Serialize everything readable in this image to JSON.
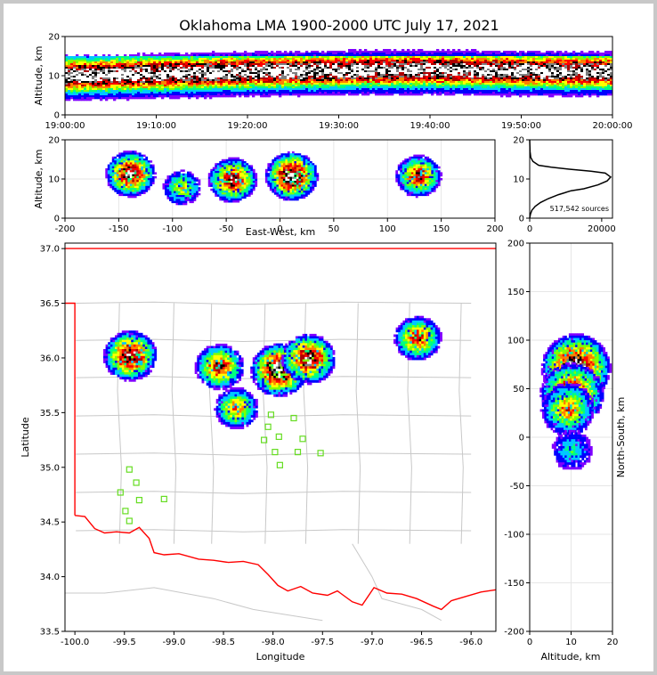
{
  "title": "Oklahoma LMA 1900-2000 UTC July 17, 2021",
  "colors": {
    "background": "#ffffff",
    "border": "#c8c8c8",
    "state_line": "#ff0000",
    "county_line": "#c8c8c8",
    "stations": "#66dd22",
    "density_scale": [
      "#8000ff",
      "#0000ff",
      "#00c8ff",
      "#00ff80",
      "#80ff00",
      "#ffff00",
      "#ff8000",
      "#ff0000",
      "#b00000",
      "#000000",
      "#808080",
      "#ffffff"
    ]
  },
  "chart_data": [
    {
      "id": "time_height",
      "type": "heatmap",
      "ylabel": "Altitude, km",
      "ylim": [
        0,
        20
      ],
      "yticks": [
        "0",
        "10",
        "20"
      ],
      "xlim": [
        "19:00:00",
        "20:00:00"
      ],
      "xticks": [
        "19:00:00",
        "19:10:00",
        "19:20:00",
        "19:30:00",
        "19:40:00",
        "19:50:00",
        "20:00:00"
      ],
      "core_altitude_km": [
        10,
        10.5,
        11,
        11.3,
        11.5,
        11.2,
        11
      ],
      "band_altitude_km": [
        3,
        15
      ]
    },
    {
      "id": "ew_height",
      "type": "heatmap",
      "xlabel": "East-West, km",
      "ylabel": "Altitude, km",
      "xlim": [
        -200,
        200
      ],
      "ylim": [
        0,
        20
      ],
      "xticks": [
        "-200",
        "-150",
        "-100",
        "-50",
        "0",
        "50",
        "100",
        "150",
        "200"
      ],
      "yticks": [
        "0",
        "10",
        "20"
      ],
      "cells": [
        {
          "x_km": -140,
          "alt_km": 11.5,
          "peak": 0.9
        },
        {
          "x_km": -45,
          "alt_km": 10,
          "peak": 0.85
        },
        {
          "x_km": 10,
          "alt_km": 11,
          "peak": 1.0
        },
        {
          "x_km": 128,
          "alt_km": 11,
          "peak": 0.75
        },
        {
          "x_km": -92,
          "alt_km": 8,
          "peak": 0.5
        }
      ]
    },
    {
      "id": "alt_histogram",
      "type": "line",
      "xlim": [
        0,
        23000
      ],
      "ylim": [
        0,
        20
      ],
      "xticks": [
        "0",
        "20000"
      ],
      "yticks": [
        "0",
        "10",
        "20"
      ],
      "annotation": "517,542 sources",
      "x": [
        0,
        200,
        600,
        1500,
        3000,
        5200,
        8000,
        11500,
        15000,
        19000,
        21500,
        22500,
        21000,
        17000,
        11000,
        6000,
        2500,
        900,
        300,
        100,
        0
      ],
      "y": [
        0,
        1,
        2,
        3,
        4,
        5,
        6,
        7,
        7.5,
        8.5,
        9.5,
        10.5,
        11.5,
        12,
        12.5,
        13,
        13.5,
        14.5,
        15.5,
        17,
        20
      ]
    },
    {
      "id": "plan_view",
      "type": "heatmap",
      "xlabel": "Longitude",
      "ylabel": "Latitude",
      "xlim": [
        -100.1,
        -95.75
      ],
      "ylim": [
        33.5,
        37.05
      ],
      "xticks": [
        "-100.0",
        "-99.5",
        "-99.0",
        "-98.5",
        "-98.0",
        "-97.5",
        "-97.0",
        "-96.5",
        "-96.0"
      ],
      "yticks": [
        "33.5",
        "34.0",
        "34.5",
        "35.0",
        "35.5",
        "36.0",
        "36.5",
        "37.0"
      ],
      "cells": [
        {
          "lon": -99.45,
          "lat": 36.03,
          "peak": 0.9
        },
        {
          "lon": -98.55,
          "lat": 35.93,
          "peak": 0.75
        },
        {
          "lon": -98.38,
          "lat": 35.55,
          "peak": 0.6
        },
        {
          "lon": -97.95,
          "lat": 35.9,
          "peak": 1.0
        },
        {
          "lon": -97.65,
          "lat": 36.0,
          "peak": 0.9
        },
        {
          "lon": -96.55,
          "lat": 36.19,
          "peak": 0.7
        }
      ],
      "stations": [
        {
          "lon": -98.02,
          "lat": 35.48
        },
        {
          "lon": -97.79,
          "lat": 35.45
        },
        {
          "lon": -98.05,
          "lat": 35.37
        },
        {
          "lon": -98.09,
          "lat": 35.25
        },
        {
          "lon": -97.94,
          "lat": 35.28
        },
        {
          "lon": -97.7,
          "lat": 35.26
        },
        {
          "lon": -97.98,
          "lat": 35.14
        },
        {
          "lon": -97.75,
          "lat": 35.14
        },
        {
          "lon": -97.52,
          "lat": 35.13
        },
        {
          "lon": -97.93,
          "lat": 35.02
        },
        {
          "lon": -99.45,
          "lat": 34.98
        },
        {
          "lon": -99.38,
          "lat": 34.86
        },
        {
          "lon": -99.54,
          "lat": 34.77
        },
        {
          "lon": -99.35,
          "lat": 34.7
        },
        {
          "lon": -99.1,
          "lat": 34.71
        },
        {
          "lon": -99.49,
          "lat": 34.6
        },
        {
          "lon": -99.45,
          "lat": 34.51
        }
      ]
    },
    {
      "id": "ns_height",
      "type": "heatmap",
      "xlabel": "Altitude, km",
      "ylabel": "North-South, km",
      "xlim": [
        0,
        20
      ],
      "ylim": [
        -200,
        200
      ],
      "xticks": [
        "0",
        "10",
        "20"
      ],
      "yticks": [
        "-200",
        "-150",
        "-100",
        "-50",
        "0",
        "50",
        "100",
        "150",
        "200"
      ],
      "cells": [
        {
          "ns_km": 72,
          "alt_km": 11,
          "peak": 1.0
        },
        {
          "ns_km": 45,
          "alt_km": 10,
          "peak": 0.85
        },
        {
          "ns_km": 30,
          "alt_km": 9,
          "peak": 0.6
        },
        {
          "ns_km": -12,
          "alt_km": 10,
          "peak": 0.3
        }
      ]
    }
  ]
}
